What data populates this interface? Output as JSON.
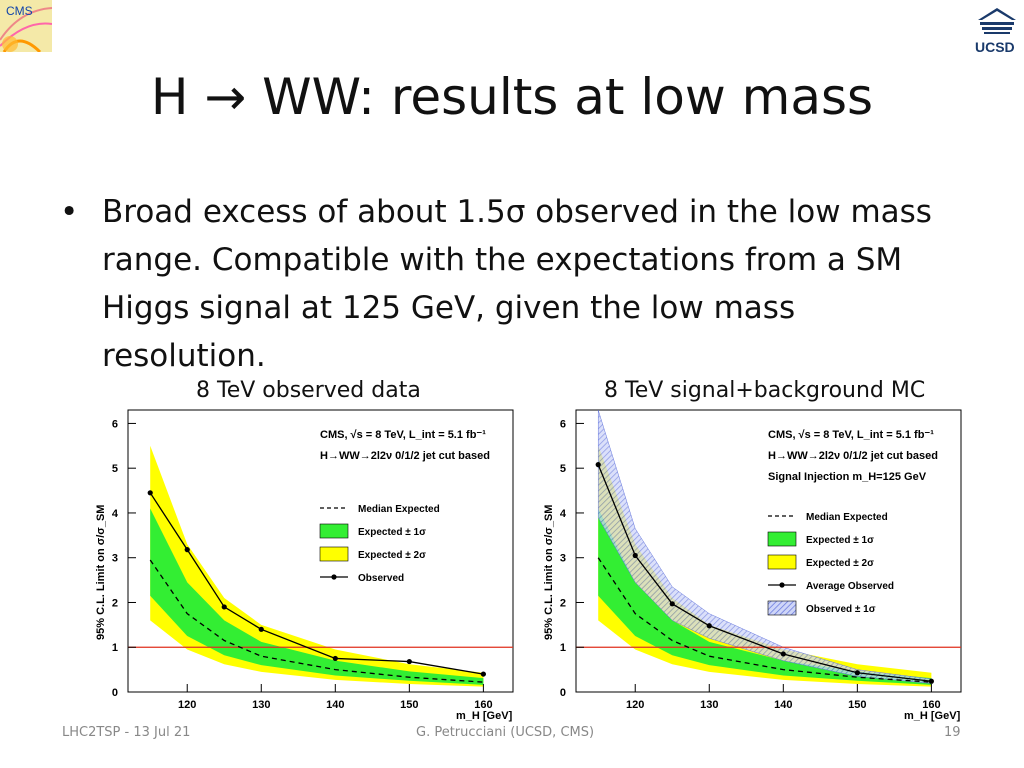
{
  "slide": {
    "title": "H → WW: results at low mass",
    "bullet": "Broad excess of about 1.5σ observed in the low mass range. Compatible with the expectations from a SM Higgs signal at 125 GeV, given the low mass resolution.",
    "caption_left": "8 TeV observed data",
    "caption_right": "8 TeV signal+background MC",
    "logo_left_text": "CMS",
    "logo_right_text": "UCSD"
  },
  "footer": {
    "left": "LHC2TSP - 13 Jul 21",
    "center": "G. Petrucciani (UCSD, CMS)",
    "page": "19"
  },
  "chart_data": [
    {
      "type": "line",
      "title": "",
      "xlabel": "m_H [GeV]",
      "ylabel": "95% C.L. Limit on σ/σ_SM",
      "xlim": [
        112,
        164
      ],
      "ylim": [
        0,
        6.3
      ],
      "xticks": [
        120,
        130,
        140,
        150,
        160
      ],
      "yticks": [
        0,
        1,
        2,
        3,
        4,
        5,
        6
      ],
      "annotations": [
        "CMS, √s = 8 TeV, L_int = 5.1 fb⁻¹",
        "H→WW→2l2ν 0/1/2 jet cut based"
      ],
      "reference_line": 1,
      "x": [
        115,
        120,
        125,
        130,
        140,
        150,
        160
      ],
      "series": [
        {
          "name": "Median Expected",
          "style": "dashed",
          "values": [
            2.95,
            1.75,
            1.15,
            0.8,
            0.5,
            0.33,
            0.22
          ]
        },
        {
          "name": "Observed",
          "style": "solid-marker",
          "values": [
            4.45,
            3.18,
            1.9,
            1.4,
            0.75,
            0.68,
            0.4
          ]
        }
      ],
      "bands": [
        {
          "name": "Expected ± 2σ",
          "color": "#ffff00",
          "low": [
            1.6,
            0.95,
            0.62,
            0.45,
            0.27,
            0.18,
            0.12
          ],
          "high": [
            5.5,
            3.3,
            2.1,
            1.5,
            0.95,
            0.62,
            0.43
          ]
        },
        {
          "name": "Expected ± 1σ",
          "color": "#33ee33",
          "low": [
            2.15,
            1.25,
            0.82,
            0.6,
            0.37,
            0.25,
            0.16
          ],
          "high": [
            4.1,
            2.45,
            1.6,
            1.12,
            0.7,
            0.46,
            0.31
          ]
        }
      ],
      "legend": [
        "Median Expected",
        "Expected ± 1σ",
        "Expected ± 2σ",
        "Observed"
      ]
    },
    {
      "type": "line",
      "title": "",
      "xlabel": "m_H [GeV]",
      "ylabel": "95% C.L. Limit on σ/σ_SM",
      "xlim": [
        112,
        164
      ],
      "ylim": [
        0,
        6.3
      ],
      "xticks": [
        120,
        130,
        140,
        150,
        160
      ],
      "yticks": [
        0,
        1,
        2,
        3,
        4,
        5,
        6
      ],
      "annotations": [
        "CMS, √s = 8 TeV, L_int = 5.1 fb⁻¹",
        "H→WW→2l2ν 0/1/2 jet cut based",
        "Signal Injection m_H=125 GeV"
      ],
      "reference_line": 1,
      "x": [
        115,
        120,
        125,
        130,
        140,
        150,
        160
      ],
      "series": [
        {
          "name": "Median Expected",
          "style": "dashed",
          "values": [
            3.0,
            1.75,
            1.15,
            0.8,
            0.5,
            0.33,
            0.22
          ]
        },
        {
          "name": "Average Observed",
          "style": "solid-marker",
          "values": [
            5.08,
            3.05,
            1.97,
            1.48,
            0.85,
            0.43,
            0.24
          ]
        }
      ],
      "bands": [
        {
          "name": "Expected ± 2σ",
          "color": "#ffff00",
          "low": [
            1.6,
            0.95,
            0.62,
            0.45,
            0.27,
            0.18,
            0.12
          ],
          "high": [
            5.5,
            3.3,
            2.1,
            1.5,
            0.95,
            0.62,
            0.43
          ]
        },
        {
          "name": "Expected ± 1σ",
          "color": "#33ee33",
          "low": [
            2.15,
            1.25,
            0.82,
            0.6,
            0.37,
            0.25,
            0.16
          ],
          "high": [
            4.1,
            2.45,
            1.6,
            1.12,
            0.7,
            0.46,
            0.31
          ]
        },
        {
          "name": "Observed ± 1σ",
          "color": "#8899ee",
          "hatched": true,
          "low": [
            3.9,
            2.45,
            1.6,
            1.2,
            0.7,
            0.35,
            0.19
          ],
          "high": [
            6.3,
            3.65,
            2.35,
            1.75,
            1.0,
            0.5,
            0.29
          ]
        }
      ],
      "legend": [
        "Median Expected",
        "Expected ± 1σ",
        "Expected ± 2σ",
        "Average Observed",
        "Observed ± 1σ"
      ]
    }
  ]
}
